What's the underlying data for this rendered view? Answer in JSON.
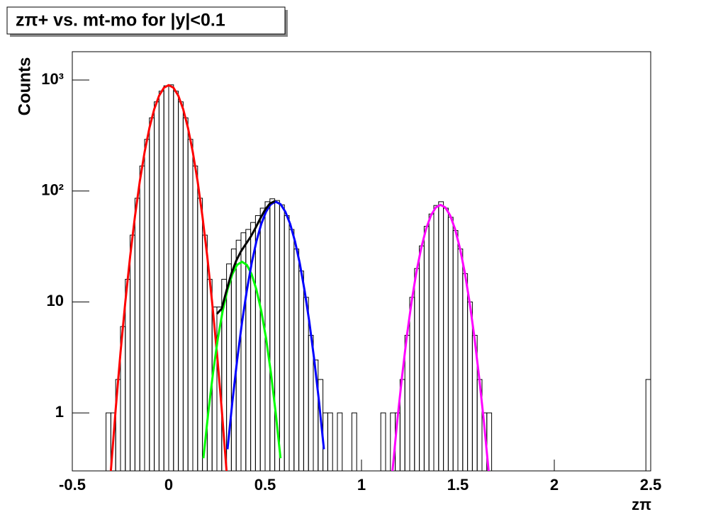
{
  "chart_data": {
    "type": "histogram",
    "title": "zπ+ vs. mt-mo for |y|<0.1",
    "xlabel": "zπ",
    "ylabel": "Counts",
    "log_y": true,
    "color": "#000000",
    "bins": [
      -0.35,
      -0.325,
      -0.3,
      -0.275,
      -0.25,
      -0.225,
      -0.2,
      -0.175,
      -0.15,
      -0.125,
      -0.1,
      -0.075,
      -0.05,
      -0.025,
      0,
      0.025,
      0.05,
      0.075,
      0.1,
      0.125,
      0.15,
      0.175,
      0.2,
      0.225,
      0.25,
      0.275,
      0.3,
      0.325,
      0.35,
      0.375,
      0.4,
      0.425,
      0.45,
      0.475,
      0.5,
      0.525,
      0.55,
      0.575,
      0.6,
      0.625,
      0.65,
      0.675,
      0.7,
      0.725,
      0.75,
      0.775,
      0.8,
      0.825,
      0.85,
      0.875,
      0.9,
      0.925,
      0.95,
      0.975,
      1,
      1.025,
      1.05,
      1.075,
      1.1,
      1.125,
      1.15,
      1.175,
      1.2,
      1.225,
      1.25,
      1.275,
      1.3,
      1.325,
      1.35,
      1.375,
      1.4,
      1.425,
      1.45,
      1.475,
      1.5,
      1.525,
      1.55,
      1.575,
      1.6,
      1.625,
      1.65,
      1.675,
      1.7,
      1.725,
      1.75,
      1.775,
      1.8,
      1.825,
      1.85,
      1.875,
      1.9,
      1.925,
      1.95,
      1.975,
      2,
      2.025,
      2.05,
      2.075,
      2.1,
      2.125,
      2.15,
      2.175,
      2.2,
      2.225,
      2.25,
      2.275,
      2.3,
      2.325,
      2.35,
      2.375,
      2.4,
      2.425,
      2.45,
      2.475,
      2.5
    ],
    "values": [
      0,
      1,
      1,
      2,
      6,
      16,
      40,
      86,
      168,
      292,
      456,
      636,
      794,
      887,
      905,
      794,
      636,
      456,
      292,
      168,
      86,
      40,
      16,
      9,
      9,
      16,
      22,
      30,
      36,
      42,
      45,
      52,
      60,
      70,
      80,
      85,
      82,
      75,
      60,
      45,
      30,
      19,
      11,
      5,
      3,
      2,
      1,
      1,
      0,
      1,
      0,
      0,
      1,
      0,
      0,
      0,
      0,
      0,
      1,
      0,
      1,
      1,
      2,
      5,
      11,
      20,
      32,
      48,
      62,
      74,
      80,
      70,
      58,
      44,
      30,
      18,
      10,
      5,
      2,
      1,
      1,
      0,
      0,
      0,
      0,
      0,
      0,
      0,
      0,
      0,
      0,
      0,
      0,
      0,
      0,
      0,
      0,
      0,
      0,
      0,
      0,
      0,
      0,
      0,
      0,
      0,
      0,
      0,
      0,
      0,
      0,
      0,
      0,
      2
    ],
    "series": [
      {
        "color": "#ff0000",
        "x": [
          -0.3,
          -0.275,
          -0.25,
          -0.225,
          -0.2,
          -0.175,
          -0.15,
          -0.125,
          -0.1,
          -0.075,
          -0.05,
          -0.025,
          0,
          0.025,
          0.05,
          0.075,
          0.1,
          0.125,
          0.15,
          0.175,
          0.2,
          0.225,
          0.25,
          0.275,
          0.3
        ],
        "values": [
          0.3,
          1.08,
          3.5,
          10,
          25.7,
          59,
          122,
          224,
          370,
          546,
          721,
          851,
          900,
          851,
          721,
          546,
          370,
          224,
          122,
          59,
          25.7,
          10,
          3.5,
          1.08,
          0.3
        ]
      },
      {
        "color": "#00ff00",
        "x": [
          0.18,
          0.205,
          0.23,
          0.255,
          0.28,
          0.305,
          0.33,
          0.355,
          0.38,
          0.405,
          0.43,
          0.455,
          0.48,
          0.505,
          0.53,
          0.555,
          0.58
        ],
        "values": [
          0.39,
          1.0,
          2.3,
          4.7,
          8.3,
          12.9,
          17.8,
          21.6,
          23,
          21.6,
          17.8,
          12.9,
          8.3,
          4.7,
          2.3,
          1.0,
          0.39
        ]
      },
      {
        "color": "#0000ff",
        "x": [
          0.305,
          0.33,
          0.355,
          0.38,
          0.405,
          0.43,
          0.455,
          0.48,
          0.505,
          0.53,
          0.555,
          0.58,
          0.605,
          0.63,
          0.655,
          0.68,
          0.705,
          0.73,
          0.755,
          0.78,
          0.805
        ],
        "values": [
          0.47,
          1.25,
          3.0,
          6.5,
          12.6,
          22.2,
          35.2,
          50.4,
          65,
          76,
          80,
          76,
          65,
          50.4,
          35.2,
          22.2,
          12.6,
          6.5,
          3.0,
          1.25,
          0.47
        ]
      },
      {
        "color": "#000000",
        "x": [
          0.25,
          0.275,
          0.3,
          0.325,
          0.35,
          0.375,
          0.4,
          0.425,
          0.45,
          0.475,
          0.5,
          0.525,
          0.55
        ],
        "values": [
          7.8,
          8.7,
          12.7,
          18,
          23.5,
          28.6,
          33.2,
          38.6,
          46.3,
          56.5,
          67.7,
          77,
          81
        ]
      },
      {
        "color": "#ff00ff",
        "x": [
          1.16,
          1.185,
          1.21,
          1.235,
          1.26,
          1.285,
          1.31,
          1.335,
          1.36,
          1.385,
          1.41,
          1.435,
          1.46,
          1.485,
          1.51,
          1.535,
          1.56,
          1.585,
          1.61,
          1.635,
          1.66
        ],
        "values": [
          0.29,
          0.83,
          2.1,
          4.9,
          10.1,
          18.7,
          30.8,
          45.5,
          60.1,
          70.9,
          75,
          70.9,
          60.1,
          45.5,
          30.8,
          18.7,
          10.1,
          4.9,
          2.1,
          0.83,
          0.29
        ]
      }
    ],
    "xlim": [
      -0.5,
      2.5
    ],
    "xticks": [
      -0.5,
      0,
      0.5,
      1,
      1.5,
      2,
      2.5
    ],
    "ylim": [
      0.3,
      1800
    ],
    "yticks": [
      1,
      10,
      {
        "value": 100,
        "label": "10²"
      },
      {
        "value": 1000,
        "label": "10³"
      }
    ]
  }
}
